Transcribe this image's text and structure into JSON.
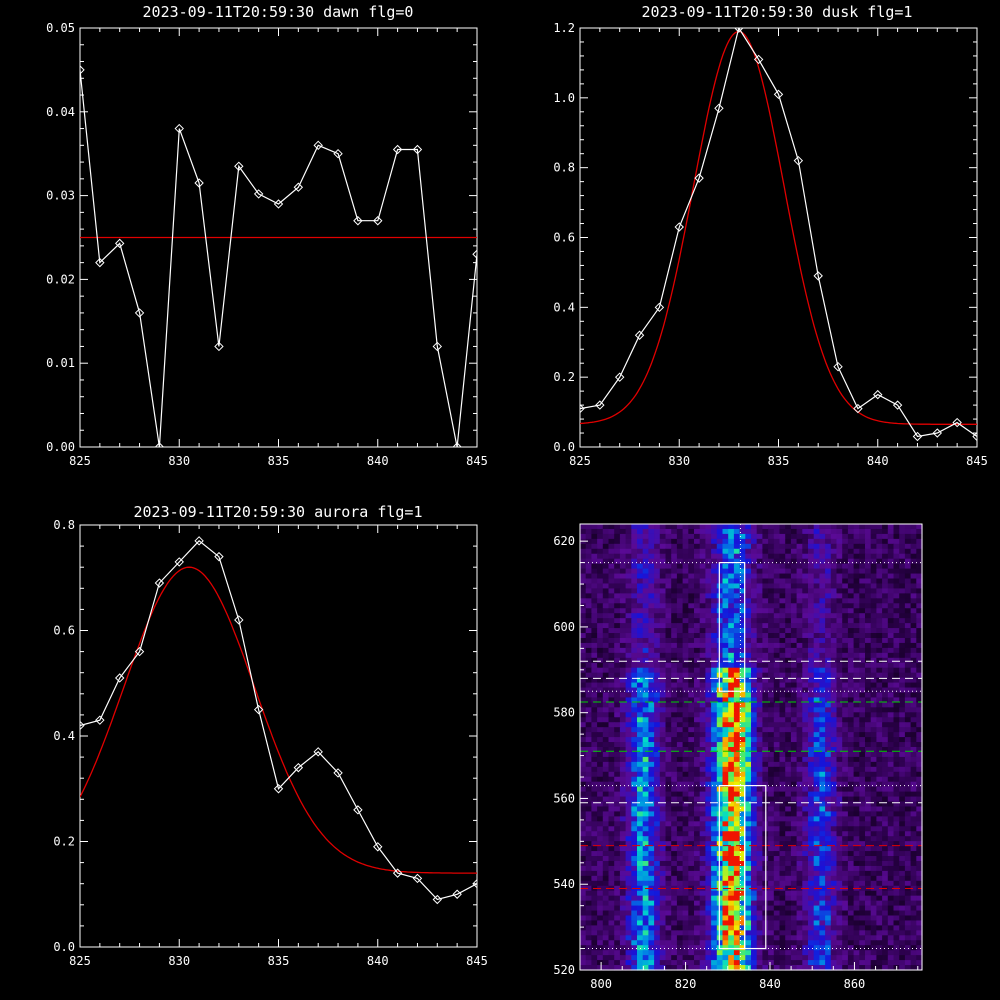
{
  "colors": {
    "background": "#000000",
    "axis": "#ffffff",
    "data_line": "#ffffff",
    "fit_line": "#e00000",
    "green_marker": "#00d000",
    "red_marker": "#e00000",
    "white_marker": "#ffffff"
  },
  "chart_data": [
    {
      "type": "line",
      "title": "2023-09-11T20:59:30 dawn flg=0",
      "xlim": [
        825,
        845
      ],
      "ylim": [
        0,
        0.05
      ],
      "xticks": [
        "825",
        "830",
        "835",
        "840",
        "845"
      ],
      "yticks": [
        "0.00",
        "0.01",
        "0.02",
        "0.03",
        "0.04",
        "0.05"
      ],
      "series": [
        {
          "marker": "diamond",
          "x": [
            825,
            826,
            827,
            828,
            829,
            830,
            831,
            832,
            833,
            834,
            835,
            836,
            837,
            838,
            839,
            840,
            841,
            842,
            843,
            844,
            845
          ],
          "y": [
            0.045,
            0.022,
            0.0243,
            0.016,
            0.0,
            0.038,
            0.0315,
            0.012,
            0.0335,
            0.0302,
            0.029,
            0.031,
            0.036,
            0.035,
            0.027,
            0.027,
            0.0355,
            0.0355,
            0.012,
            0.0,
            0.023
          ]
        }
      ],
      "fit": {
        "kind": "constant",
        "value": 0.025
      }
    },
    {
      "type": "line",
      "title": "2023-09-11T20:59:30 dusk flg=1",
      "xlim": [
        825,
        845
      ],
      "ylim": [
        0,
        1.2
      ],
      "xticks": [
        "825",
        "830",
        "835",
        "840",
        "845"
      ],
      "yticks": [
        "0.0",
        "0.2",
        "0.4",
        "0.6",
        "0.8",
        "1.0",
        "1.2"
      ],
      "series": [
        {
          "marker": "diamond",
          "x": [
            825,
            826,
            827,
            828,
            829,
            830,
            831,
            832,
            833,
            834,
            835,
            836,
            837,
            838,
            839,
            840,
            841,
            842,
            843,
            844,
            845
          ],
          "y": [
            0.11,
            0.12,
            0.2,
            0.32,
            0.4,
            0.63,
            0.77,
            0.97,
            1.2,
            1.11,
            1.01,
            0.82,
            0.49,
            0.23,
            0.11,
            0.15,
            0.12,
            0.03,
            0.04,
            0.07,
            0.03
          ]
        }
      ],
      "fit": {
        "kind": "gaussian",
        "amplitude": 1.125,
        "center": 833.0,
        "sigma": 2.28,
        "offset": 0.065,
        "slope": 0.0
      }
    },
    {
      "type": "line",
      "title": "2023-09-11T20:59:30 aurora flg=1",
      "xlim": [
        825,
        845
      ],
      "ylim": [
        0,
        0.8
      ],
      "xticks": [
        "825",
        "830",
        "835",
        "840",
        "845"
      ],
      "yticks": [
        "0.0",
        "0.2",
        "0.4",
        "0.6",
        "0.8"
      ],
      "series": [
        {
          "marker": "diamond",
          "x": [
            825,
            826,
            827,
            828,
            829,
            830,
            831,
            832,
            833,
            834,
            835,
            836,
            837,
            838,
            839,
            840,
            841,
            842,
            843,
            844,
            845
          ],
          "y": [
            0.42,
            0.43,
            0.51,
            0.56,
            0.69,
            0.73,
            0.77,
            0.74,
            0.62,
            0.45,
            0.3,
            0.34,
            0.37,
            0.33,
            0.26,
            0.19,
            0.14,
            0.13,
            0.09,
            0.1,
            0.12
          ]
        }
      ],
      "fit": {
        "kind": "gaussian",
        "amplitude": 0.58,
        "center": 830.5,
        "sigma": 3.3,
        "offset": 0.14,
        "slope": 0.0
      }
    },
    {
      "type": "heatmap",
      "xlim": [
        795,
        876
      ],
      "ylim": [
        520,
        624
      ],
      "xticks": [
        "800",
        "820",
        "840",
        "860"
      ],
      "yticks": [
        "520",
        "540",
        "560",
        "580",
        "600",
        "620"
      ],
      "emission_columns": [
        {
          "center": 810,
          "strength": 0.45
        },
        {
          "center": 831,
          "strength": 0.9
        },
        {
          "center": 852,
          "strength": 0.32
        }
      ],
      "vertical_marker_x": 833,
      "boxes": [
        {
          "x": [
            828,
            834
          ],
          "y": [
            585,
            615
          ]
        },
        {
          "x": [
            834,
            839
          ],
          "y": [
            525,
            563
          ]
        },
        {
          "x": [
            828,
            834
          ],
          "y": [
            525,
            563
          ]
        }
      ],
      "horizontal_markers": [
        {
          "y": 615,
          "style": "dotted",
          "color": "white"
        },
        {
          "y": 592,
          "style": "dashed",
          "color": "white"
        },
        {
          "y": 588,
          "style": "dashed",
          "color": "white"
        },
        {
          "y": 585,
          "style": "dotted",
          "color": "white"
        },
        {
          "y": 582.5,
          "style": "dashed",
          "color": "green"
        },
        {
          "y": 571,
          "style": "dashed",
          "color": "green"
        },
        {
          "y": 563,
          "style": "dotted",
          "color": "white"
        },
        {
          "y": 559,
          "style": "dashed",
          "color": "white"
        },
        {
          "y": 549,
          "style": "dashed",
          "color": "red"
        },
        {
          "y": 539,
          "style": "dashed",
          "color": "red"
        },
        {
          "y": 525,
          "style": "dotted",
          "color": "white"
        }
      ]
    }
  ]
}
